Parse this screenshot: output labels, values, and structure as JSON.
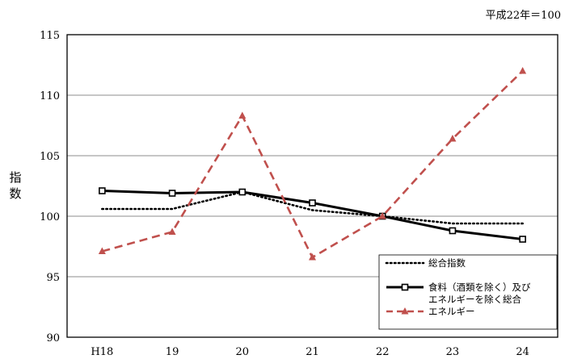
{
  "note": "平成22年＝100",
  "chart_data": {
    "type": "line",
    "ylabel": "指数",
    "categories": [
      "H18",
      "19",
      "20",
      "21",
      "22",
      "23",
      "24"
    ],
    "ylim": [
      90,
      115
    ],
    "yticks": [
      90,
      95,
      100,
      105,
      110,
      115
    ],
    "grid": true,
    "legend_position": "bottom-right",
    "series": [
      {
        "name": "総合指数",
        "style": "dotted",
        "color": "#000000",
        "values": [
          100.6,
          100.6,
          102.0,
          100.5,
          100.0,
          99.4,
          99.4
        ]
      },
      {
        "name": "食料（酒類を除く）及びエネルギーを除く総合",
        "legend_lines": [
          "食料（酒類を除く）及び",
          "エネルギーを除く総合"
        ],
        "style": "solid-square",
        "color": "#000000",
        "values": [
          102.1,
          101.9,
          102.0,
          101.1,
          100.0,
          98.8,
          98.1
        ]
      },
      {
        "name": "エネルギー",
        "style": "dashed-triangle",
        "color": "#c0504d",
        "values": [
          97.1,
          98.7,
          108.3,
          96.6,
          100.0,
          106.4,
          112.0
        ]
      }
    ]
  }
}
